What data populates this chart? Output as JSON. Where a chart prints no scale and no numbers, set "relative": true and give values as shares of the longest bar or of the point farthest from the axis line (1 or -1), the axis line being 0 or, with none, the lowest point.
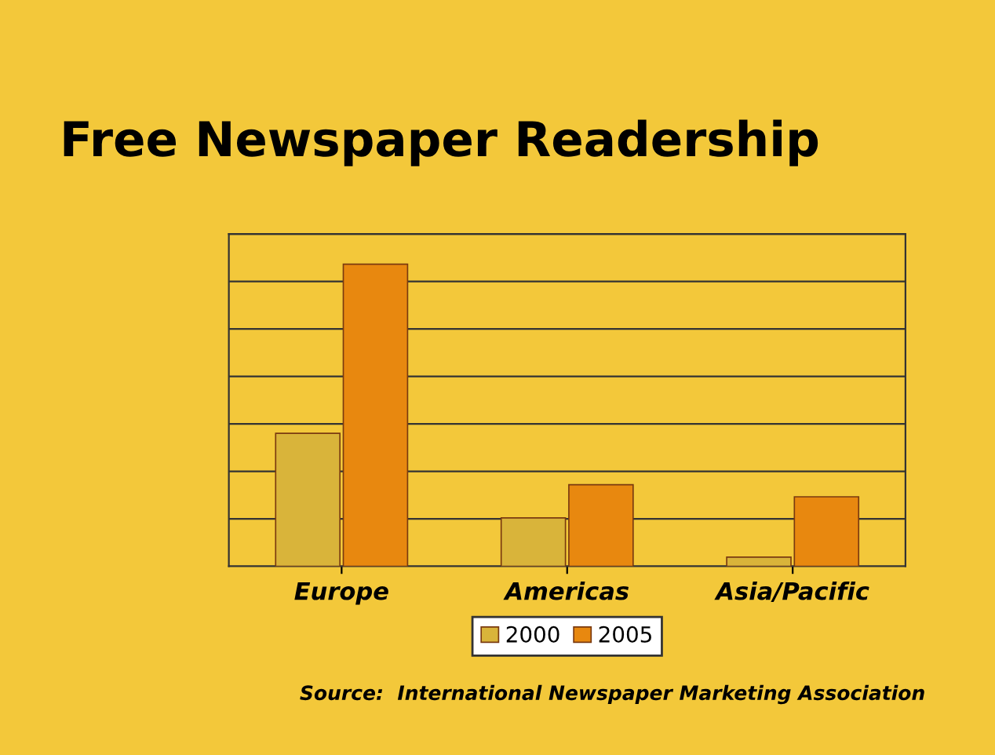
{
  "chart_data": {
    "type": "bar",
    "title": "Free Newspaper Readership",
    "categories": [
      "Europe",
      "Americas",
      "Asia/Pacific"
    ],
    "series": [
      {
        "name": "2000",
        "color": "#d9b43a",
        "values": [
          0.44,
          0.16,
          0.03
        ]
      },
      {
        "name": "2005",
        "color": "#e8880f",
        "values": [
          1,
          0.27,
          0.23
        ]
      }
    ],
    "relative": true,
    "grid": "y",
    "legend": "bottom",
    "annotations": [
      "Source:  International Newspaper Marketing Association"
    ]
  }
}
